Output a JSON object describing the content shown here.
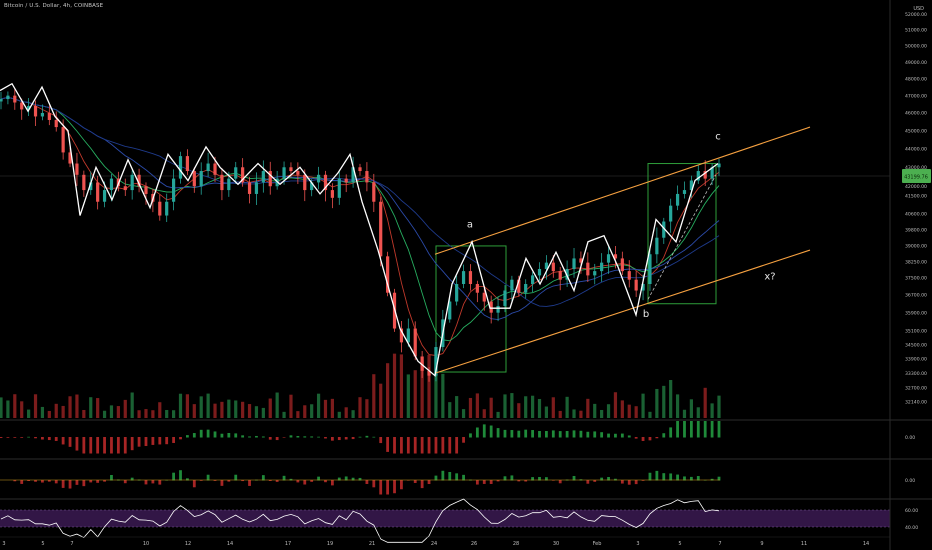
{
  "header": {
    "title": "Bitcoin / U.S. Dollar, 4h, COINBASE",
    "currency": "USD"
  },
  "price_label": "43199.76",
  "colors": {
    "background": "#000000",
    "up": "#26a69a",
    "down": "#ef5350",
    "wave": "#ffffff",
    "channel": "#f5a040",
    "box": "#2e9e3a",
    "ma_red": "#c0392b",
    "ma_green": "#27ae60",
    "ma_blue": "#2b4aa8",
    "rsi_line": "#ffffff",
    "rsi_band": "#3b1a52",
    "price_badge": "#4caf50"
  },
  "chart_data": {
    "type": "candlestick",
    "symbol": "Bitcoin / U.S. Dollar",
    "interval": "4h",
    "exchange": "COINBASE",
    "y_ticks": [
      "52000.00",
      "51000.00",
      "50000.00",
      "49000.00",
      "48000.00",
      "47000.00",
      "46000.00",
      "45000.00",
      "44000.00",
      "43000.00",
      "42000.00",
      "41500.00",
      "40600.00",
      "39800.00",
      "39000.00",
      "38250.00",
      "37500.00",
      "36700.00",
      "35900.00",
      "35100.00",
      "34500.00",
      "33900.00",
      "33300.00",
      "32700.00",
      "32140.00"
    ],
    "x_ticks": [
      "3",
      "5",
      "7",
      "10",
      "12",
      "14",
      "17",
      "19",
      "21",
      "24",
      "26",
      "28",
      "30",
      "Feb",
      "3",
      "5",
      "7",
      "9",
      "11",
      "14"
    ],
    "ylim": [
      31500,
      52400
    ],
    "log_scale": true,
    "close_estimate": [
      46800,
      47000,
      46600,
      46200,
      46400,
      45800,
      46000,
      45600,
      45200,
      43800,
      43200,
      42600,
      41800,
      42200,
      41200,
      41800,
      42400,
      42000,
      41800,
      42600,
      42000,
      41600,
      41200,
      40500,
      41200,
      42400,
      43600,
      42800,
      42000,
      42800,
      43200,
      42600,
      41800,
      42400,
      43000,
      42200,
      41600,
      42200,
      42800,
      42000,
      42400,
      43000,
      42800,
      42600,
      41800,
      42200,
      42600,
      41800,
      41400,
      42400,
      42200,
      43000,
      42800,
      42200,
      41200,
      38500,
      36800,
      35200,
      34600,
      35200,
      34000,
      33400,
      33200,
      34400,
      35600,
      36400,
      37200,
      37800,
      37200,
      36800,
      36400,
      35900,
      36200,
      36900,
      37400,
      36800,
      37200,
      37600,
      37900,
      38200,
      37800,
      37400,
      37900,
      38400,
      38200,
      37600,
      37800,
      38200,
      38600,
      38400,
      37800,
      37400,
      36900,
      37200,
      38600,
      39400,
      40200,
      41000,
      41600,
      41800,
      42300,
      42800,
      42400,
      43000,
      43200
    ],
    "wave_path": [
      [
        0,
        47300
      ],
      [
        12,
        47700
      ],
      [
        28,
        46100
      ],
      [
        42,
        47500
      ],
      [
        55,
        45800
      ],
      [
        68,
        45000
      ],
      [
        80,
        40500
      ],
      [
        96,
        43000
      ],
      [
        112,
        41300
      ],
      [
        128,
        43400
      ],
      [
        150,
        40900
      ],
      [
        168,
        43700
      ],
      [
        188,
        42300
      ],
      [
        206,
        44100
      ],
      [
        220,
        43000
      ],
      [
        238,
        42100
      ],
      [
        258,
        43200
      ],
      [
        280,
        42100
      ],
      [
        300,
        43000
      ],
      [
        320,
        41600
      ],
      [
        338,
        42700
      ],
      [
        350,
        43700
      ],
      [
        362,
        41200
      ],
      [
        378,
        38800
      ],
      [
        400,
        35200
      ],
      [
        418,
        33800
      ],
      [
        435,
        33200
      ],
      [
        452,
        37200
      ],
      [
        472,
        39200
      ],
      [
        490,
        36100
      ],
      [
        510,
        36100
      ],
      [
        526,
        38400
      ],
      [
        540,
        37200
      ],
      [
        556,
        38700
      ],
      [
        574,
        36900
      ],
      [
        588,
        39200
      ],
      [
        604,
        39500
      ],
      [
        618,
        38000
      ],
      [
        636,
        35800
      ],
      [
        656,
        40300
      ],
      [
        676,
        39200
      ],
      [
        695,
        42300
      ],
      [
        718,
        43200
      ]
    ],
    "wave_labels": [
      {
        "text": "a",
        "x": 470,
        "price": 39900
      },
      {
        "text": "b",
        "x": 646,
        "price": 35700
      },
      {
        "text": "c",
        "x": 718,
        "price": 44500
      },
      {
        "text": "x?",
        "x": 770,
        "price": 37400
      }
    ],
    "channel": {
      "upper": [
        [
          435,
          38600
        ],
        [
          810,
          45200
        ]
      ],
      "lower": [
        [
          435,
          33300
        ],
        [
          810,
          38800
        ]
      ]
    },
    "boxes": [
      {
        "x0": 436,
        "x1": 506,
        "p0": 39000,
        "p1": 33350
      },
      {
        "x0": 648,
        "x1": 716,
        "p0": 43200,
        "p1": 36300
      }
    ],
    "panels": [
      {
        "name": "macd_histogram",
        "zero_label": "0.00"
      },
      {
        "name": "momentum",
        "zero_label": "0.00"
      },
      {
        "name": "rsi",
        "upper_label": "60.00",
        "lower_label": "40.00"
      }
    ]
  }
}
